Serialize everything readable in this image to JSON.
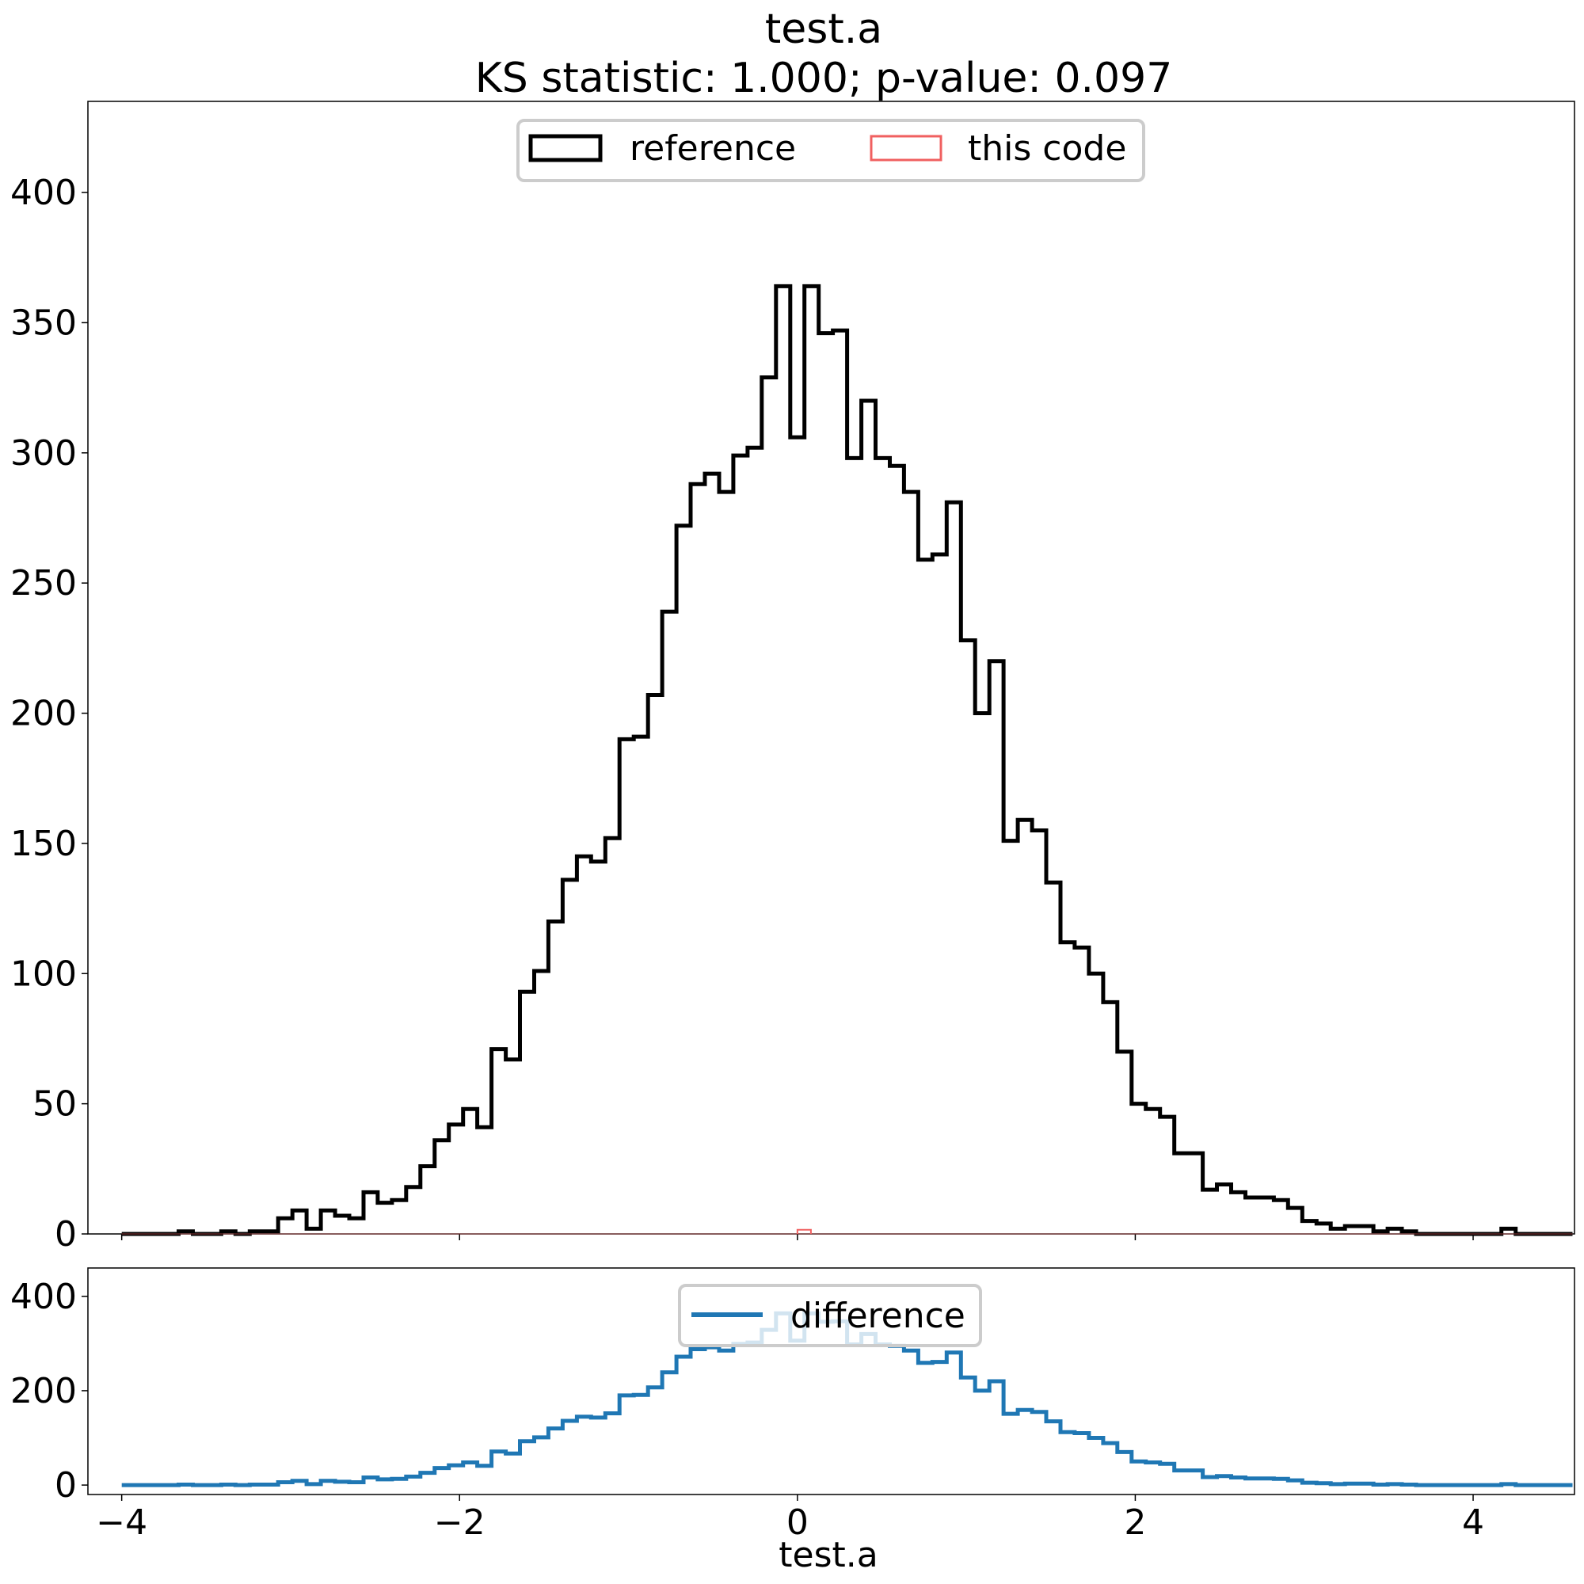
{
  "chart_data": [
    {
      "type": "histogram",
      "title": "test.a",
      "subtitle": "KS statistic: 1.000; p-value: 0.097",
      "xlabel": "",
      "ylabel": "",
      "xlim": [
        -4.2,
        4.6
      ],
      "ylim": [
        0,
        435
      ],
      "yticks": [
        0,
        50,
        100,
        150,
        200,
        250,
        300,
        350,
        400
      ],
      "xticks": [
        -4,
        -2,
        0,
        2,
        4
      ],
      "bin_start": -4.0,
      "bin_width": 0.0842,
      "legend_position": "top-center",
      "legend_columns": 2,
      "series": [
        {
          "name": "reference",
          "color": "#000000",
          "style": "step",
          "counts": [
            0,
            0,
            0,
            0,
            1,
            0,
            0,
            1,
            0,
            1,
            1,
            6,
            9,
            2,
            9,
            7,
            6,
            16,
            12,
            13,
            18,
            26,
            36,
            42,
            48,
            41,
            71,
            67,
            93,
            101,
            120,
            136,
            145,
            143,
            152,
            190,
            191,
            207,
            239,
            272,
            288,
            292,
            285,
            299,
            302,
            329,
            364,
            306,
            364,
            346,
            347,
            298,
            320,
            298,
            295,
            285,
            259,
            261,
            281,
            228,
            200,
            220,
            151,
            159,
            155,
            135,
            112,
            110,
            100,
            89,
            70,
            50,
            48,
            45,
            31,
            31,
            17,
            19,
            16,
            14,
            14,
            13,
            10,
            5,
            4,
            2,
            3,
            3,
            1,
            2,
            1,
            0,
            0,
            0,
            0,
            0,
            0,
            2,
            0,
            0,
            0,
            0
          ]
        },
        {
          "name": "this code",
          "color": "#f06060",
          "style": "step",
          "x": [
            0.0,
            0.08
          ],
          "count": 1
        }
      ]
    },
    {
      "type": "line",
      "xlabel": "test.a",
      "ylabel": "",
      "xlim": [
        -4.2,
        4.6
      ],
      "ylim": [
        -20,
        460
      ],
      "yticks": [
        0,
        200,
        400
      ],
      "xticks": [
        -4,
        -2,
        0,
        2,
        4
      ],
      "xtick_labels": [
        "−4",
        "−2",
        "0",
        "2",
        "4"
      ],
      "legend_position": "top-center",
      "series": [
        {
          "name": "difference",
          "color": "#1f77b4",
          "style": "step",
          "values_source": "reference minus this code"
        }
      ]
    }
  ]
}
